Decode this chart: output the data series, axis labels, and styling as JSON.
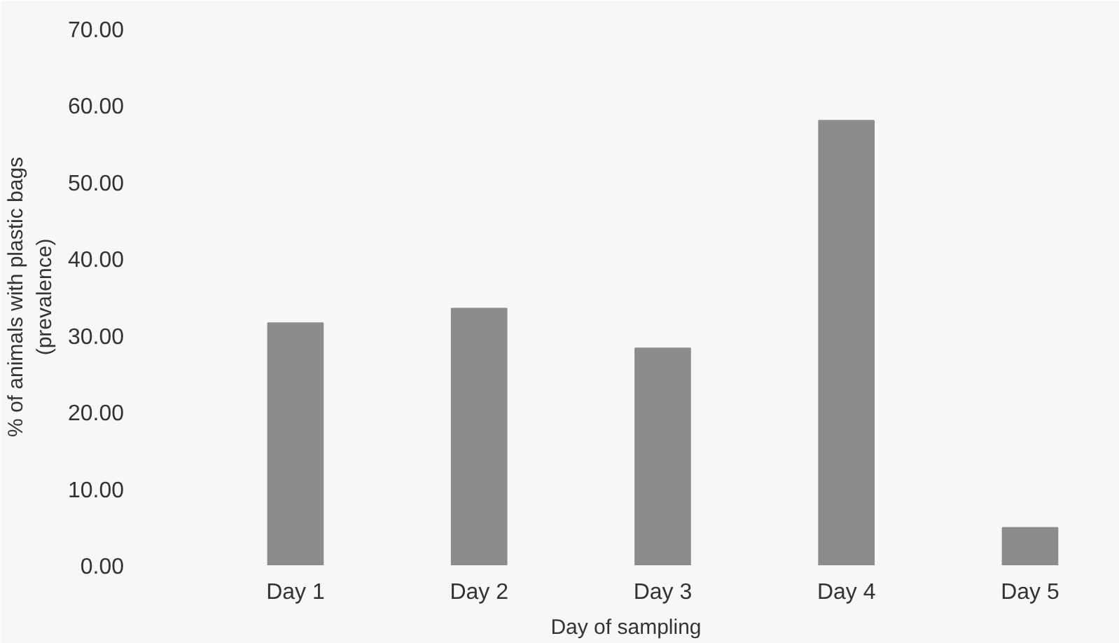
{
  "chart_data": {
    "type": "bar",
    "xlabel": "Day of sampling",
    "ylabel": "% of animals with plastic bags\n(prevalence)",
    "categories": [
      "Day 1",
      "Day 2",
      "Day 3",
      "Day 4",
      "Day 5"
    ],
    "values": [
      31.6,
      33.5,
      28.3,
      58.0,
      4.9
    ],
    "color": "#8c8c8c",
    "ylim": [
      0,
      70
    ],
    "yticks": [
      {
        "value": 0,
        "label": "0.00"
      },
      {
        "value": 10,
        "label": "10.00"
      },
      {
        "value": 20,
        "label": "20.00"
      },
      {
        "value": 30,
        "label": "30.00"
      },
      {
        "value": 40,
        "label": "40.00"
      },
      {
        "value": 50,
        "label": "50.00"
      },
      {
        "value": 60,
        "label": "60.00"
      },
      {
        "value": 70,
        "label": "70.00"
      }
    ],
    "grid": false
  }
}
